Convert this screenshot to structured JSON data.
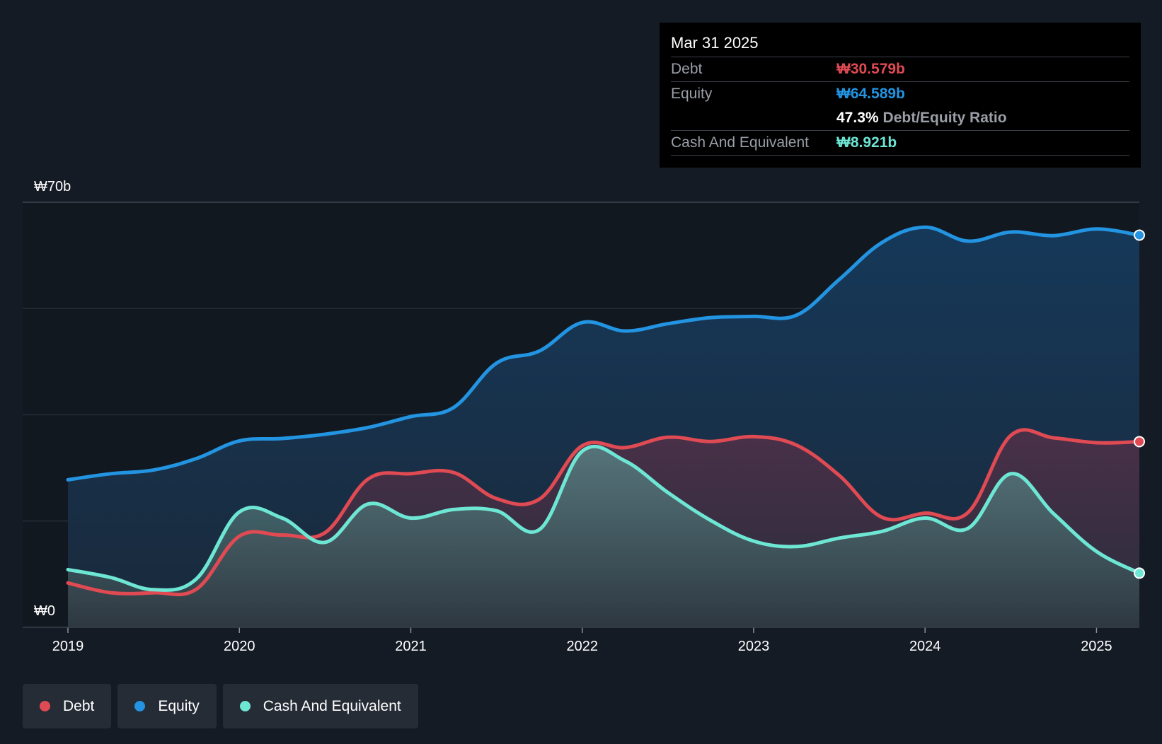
{
  "colors": {
    "debt": "#e04a53",
    "equity": "#2394e1",
    "cash": "#6ee6d4",
    "background": "#151b24"
  },
  "tooltip": {
    "date": "Mar 31 2025",
    "debt_label": "Debt",
    "debt_value": "₩30.579b",
    "equity_label": "Equity",
    "equity_value": "₩64.589b",
    "ratio_value": "47.3%",
    "ratio_label": "Debt/Equity Ratio",
    "cash_label": "Cash And Equivalent",
    "cash_value": "₩8.921b"
  },
  "legend": [
    {
      "label": "Debt",
      "color": "#e04a53"
    },
    {
      "label": "Equity",
      "color": "#2394e1"
    },
    {
      "label": "Cash And Equivalent",
      "color": "#6ee6d4"
    }
  ],
  "chart_data": {
    "type": "area",
    "title": "",
    "xlabel": "",
    "ylabel": "",
    "y_top_label": "₩70b",
    "y_bottom_label": "₩0",
    "ylim": [
      0,
      70
    ],
    "xlim": [
      2019.0,
      2025.25
    ],
    "x_ticks": [
      2019,
      2020,
      2021,
      2022,
      2023,
      2024,
      2025
    ],
    "x_tick_labels": [
      "2019",
      "2020",
      "2021",
      "2022",
      "2023",
      "2024",
      "2025"
    ],
    "grid": true,
    "series": [
      {
        "name": "Equity",
        "x": [
          2019.0,
          2019.25,
          2019.5,
          2019.75,
          2020.0,
          2020.25,
          2020.5,
          2020.75,
          2021.0,
          2021.25,
          2021.5,
          2021.75,
          2022.0,
          2022.25,
          2022.5,
          2022.75,
          2023.0,
          2023.25,
          2023.5,
          2023.75,
          2024.0,
          2024.25,
          2024.5,
          2024.75,
          2025.0,
          2025.25
        ],
        "values": [
          24.3,
          25.3,
          25.9,
          27.8,
          30.7,
          31.1,
          31.8,
          32.9,
          34.7,
          36.2,
          43.5,
          45.5,
          50.2,
          48.8,
          50.0,
          51.0,
          51.2,
          51.4,
          57.3,
          63.4,
          65.9,
          63.6,
          65.1,
          64.5,
          65.6,
          64.589
        ]
      },
      {
        "name": "Debt",
        "x": [
          2019.0,
          2019.25,
          2019.5,
          2019.75,
          2020.0,
          2020.25,
          2020.5,
          2020.75,
          2021.0,
          2021.25,
          2021.5,
          2021.75,
          2022.0,
          2022.25,
          2022.5,
          2022.75,
          2023.0,
          2023.25,
          2023.5,
          2023.75,
          2024.0,
          2024.25,
          2024.5,
          2024.75,
          2025.0,
          2025.25
        ],
        "values": [
          7.3,
          5.7,
          5.7,
          6.3,
          15.0,
          15.2,
          15.6,
          24.4,
          25.3,
          25.5,
          21.2,
          21.1,
          29.9,
          29.6,
          31.3,
          30.6,
          31.4,
          30.0,
          25.0,
          18.1,
          18.8,
          18.9,
          31.6,
          31.2,
          30.4,
          30.579
        ]
      },
      {
        "name": "Cash And Equivalent",
        "x": [
          2019.0,
          2019.25,
          2019.5,
          2019.75,
          2020.0,
          2020.25,
          2020.5,
          2020.75,
          2021.0,
          2021.25,
          2021.5,
          2021.75,
          2022.0,
          2022.25,
          2022.5,
          2022.75,
          2023.0,
          2023.25,
          2023.5,
          2023.75,
          2024.0,
          2024.25,
          2024.5,
          2024.75,
          2025.0,
          2025.25
        ],
        "values": [
          9.5,
          8.2,
          6.2,
          8.0,
          19.0,
          18.0,
          14.0,
          20.3,
          18.0,
          19.4,
          19.2,
          16.1,
          29.0,
          27.4,
          22.2,
          17.6,
          14.2,
          13.3,
          14.7,
          15.8,
          18.0,
          16.3,
          25.3,
          18.7,
          12.5,
          8.921
        ]
      }
    ]
  }
}
